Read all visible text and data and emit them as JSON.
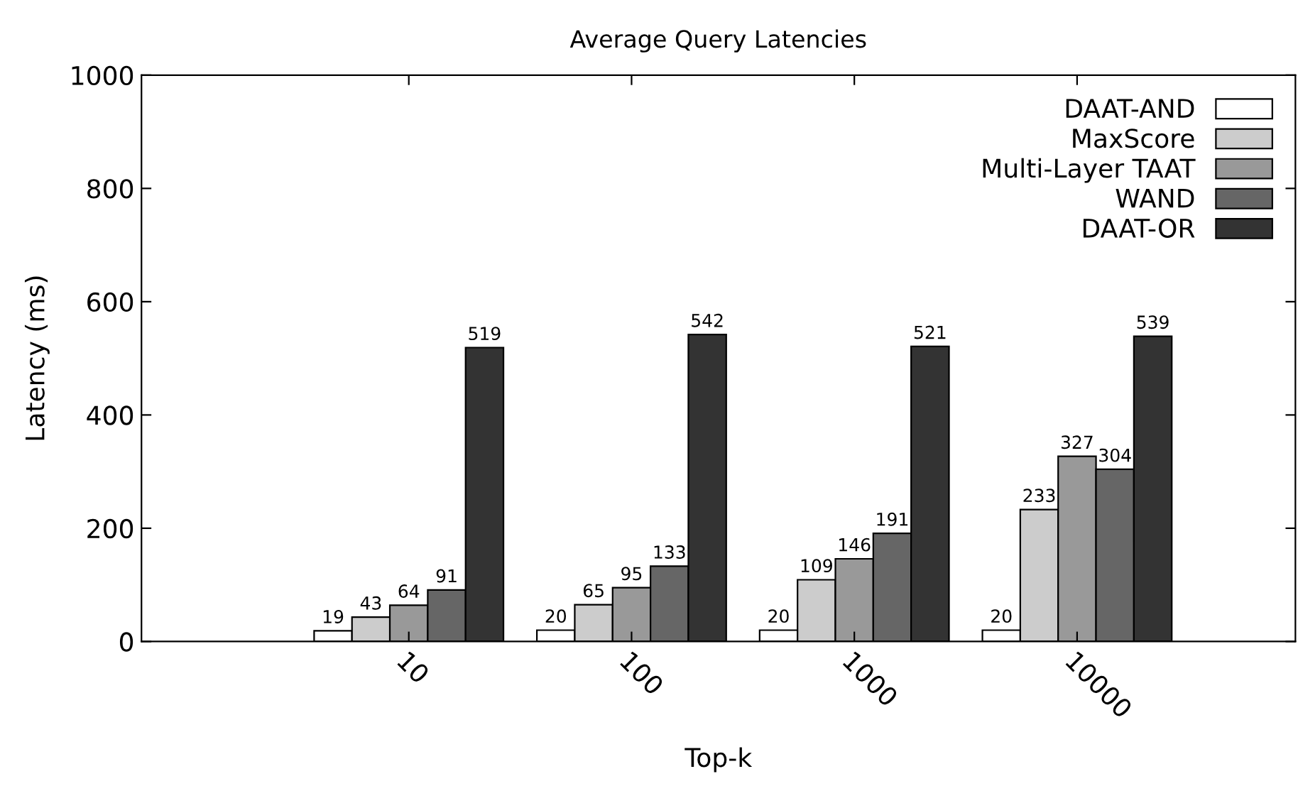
{
  "chart_data": {
    "type": "bar",
    "title": "Average Query Latencies",
    "xlabel": "Top-k",
    "ylabel": "Latency (ms)",
    "categories": [
      "10",
      "100",
      "1000",
      "10000"
    ],
    "series": [
      {
        "name": "DAAT-AND",
        "color": "#ffffff",
        "values": [
          19,
          20,
          20,
          20
        ]
      },
      {
        "name": "MaxScore",
        "color": "#cccccc",
        "values": [
          43,
          65,
          109,
          233
        ]
      },
      {
        "name": "Multi-Layer TAAT",
        "color": "#999999",
        "values": [
          64,
          95,
          146,
          327
        ]
      },
      {
        "name": "WAND",
        "color": "#666666",
        "values": [
          91,
          133,
          191,
          304
        ]
      },
      {
        "name": "DAAT-OR",
        "color": "#333333",
        "values": [
          519,
          542,
          521,
          539
        ]
      }
    ],
    "ylim": [
      0,
      1000
    ],
    "yticks": [
      0,
      200,
      400,
      600,
      800,
      1000
    ],
    "data_labels": true,
    "legend": "top right",
    "grid": false
  }
}
